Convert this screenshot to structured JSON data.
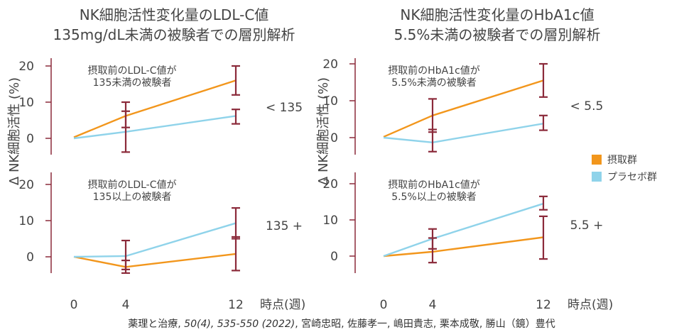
{
  "charts": [
    {
      "title_lines": [
        "NK細胞活性変化量のLDL-C値",
        "135mg/dL未満の被験者での層別解析"
      ],
      "panels": [
        {
          "annotation_lines": [
            "摂取前のLDL-C値が",
            "135未満の被験者"
          ],
          "segment_label": "< 135",
          "series": [
            {
              "key": "intake",
              "points": [
                [
                  0,
                  0.3
                ],
                [
                  4,
                  6.2
                ],
                [
                  12,
                  16.0
                ]
              ],
              "err": [
                null,
                [
                  3.0,
                  10.0
                ],
                [
                  12.0,
                  20.0
                ]
              ]
            },
            {
              "key": "placebo",
              "points": [
                [
                  0,
                  0.0
                ],
                [
                  4,
                  1.8
                ],
                [
                  12,
                  6.2
                ]
              ],
              "err": [
                null,
                [
                  -3.8,
                  7.5
                ],
                [
                  4.0,
                  8.0
                ]
              ]
            }
          ]
        },
        {
          "annotation_lines": [
            "摂取前のLDL-C値が",
            "135以上の被験者"
          ],
          "segment_label": "135 +",
          "series": [
            {
              "key": "intake",
              "points": [
                [
                  0,
                  0.0
                ],
                [
                  4,
                  -2.8
                ],
                [
                  12,
                  0.8
                ]
              ],
              "err": [
                null,
                [
                  -4.5,
                  -1.0
                ],
                [
                  -3.8,
                  5.5
                ]
              ]
            },
            {
              "key": "placebo",
              "points": [
                [
                  0,
                  0.0
                ],
                [
                  4,
                  0.2
                ],
                [
                  12,
                  9.3
                ]
              ],
              "err": [
                null,
                [
                  -3.5,
                  4.5
                ],
                [
                  5.0,
                  13.5
                ]
              ]
            }
          ]
        }
      ],
      "xaxis": {
        "ticks": [
          "0",
          "4",
          "12"
        ],
        "label": "時点(週)"
      }
    },
    {
      "title_lines": [
        "NK細胞活性変化量のHbA1c値",
        "5.5%未満の被験者での層別解析"
      ],
      "panels": [
        {
          "annotation_lines": [
            "摂取前のHbA1c値が",
            "5.5%未満の被験者"
          ],
          "segment_label": "< 5.5",
          "series": [
            {
              "key": "intake",
              "points": [
                [
                  0,
                  0.2
                ],
                [
                  4,
                  6.0
                ],
                [
                  12,
                  15.5
                ]
              ],
              "err": [
                null,
                [
                  1.5,
                  10.5
                ],
                [
                  11.0,
                  20.0
                ]
              ]
            },
            {
              "key": "placebo",
              "points": [
                [
                  0,
                  0.0
                ],
                [
                  4,
                  -1.3
                ],
                [
                  12,
                  3.8
                ]
              ],
              "err": [
                null,
                [
                  -3.8,
                  2.2
                ],
                [
                  2.0,
                  6.0
                ]
              ]
            }
          ]
        },
        {
          "annotation_lines": [
            "摂取前のHbA1c値が",
            "5.5%以上の被験者"
          ],
          "segment_label": "5.5 +",
          "series": [
            {
              "key": "intake",
              "points": [
                [
                  0,
                  0.0
                ],
                [
                  4,
                  1.2
                ],
                [
                  12,
                  5.2
                ]
              ],
              "err": [
                null,
                [
                  -1.8,
                  5.0
                ],
                [
                  -0.8,
                  11.0
                ]
              ]
            },
            {
              "key": "placebo",
              "points": [
                [
                  0,
                  0.0
                ],
                [
                  4,
                  4.8
                ],
                [
                  12,
                  14.5
                ]
              ],
              "err": [
                null,
                [
                  2.0,
                  7.5
                ],
                [
                  12.8,
                  16.5
                ]
              ]
            }
          ]
        }
      ],
      "xaxis": {
        "ticks": [
          "0",
          "4",
          "12"
        ],
        "label": "時点(週)"
      }
    }
  ],
  "yaxis": {
    "label": "Δ NK細胞活性 (%)",
    "ticks": [
      "0",
      "10",
      "20"
    ],
    "ylim": [
      -5,
      22
    ]
  },
  "legend": {
    "items": [
      {
        "key": "intake",
        "label": "摂取群",
        "color": "#f2961c"
      },
      {
        "key": "placebo",
        "label": "プラセボ群",
        "color": "#8fd3ea"
      }
    ],
    "placement": "right"
  },
  "citation": {
    "before": "薬理と治療, ",
    "italic": "50(4), 535-550 (2022)",
    "after": ", 宮崎忠昭, 佐藤孝一, 嶋田貴志, 栗本成敬, 勝山（鏡）豊代"
  },
  "colors": {
    "axis": "#8b2a3a",
    "error_bar": "#8b2a3a"
  },
  "chart_data": [
    {
      "type": "line",
      "title": "NK細胞活性変化量のLDL-C値 135mg/dL未満の被験者での層別解析",
      "xlabel": "時点(週)",
      "ylabel": "Δ NK細胞活性 (%)",
      "x": [
        0,
        4,
        12
      ],
      "ylim": [
        -5,
        22
      ],
      "subplots": [
        {
          "label": "< 135",
          "series": [
            {
              "name": "摂取群",
              "values": [
                0.3,
                6.2,
                16.0
              ]
            },
            {
              "name": "プラセボ群",
              "values": [
                0.0,
                1.8,
                6.2
              ]
            }
          ]
        },
        {
          "label": "135 +",
          "series": [
            {
              "name": "摂取群",
              "values": [
                0.0,
                -2.8,
                0.8
              ]
            },
            {
              "name": "プラセボ群",
              "values": [
                0.0,
                0.2,
                9.3
              ]
            }
          ]
        }
      ],
      "grid": false,
      "legend": "right"
    },
    {
      "type": "line",
      "title": "NK細胞活性変化量のHbA1c値 5.5%未満の被験者での層別解析",
      "xlabel": "時点(週)",
      "ylabel": "Δ NK細胞活性 (%)",
      "x": [
        0,
        4,
        12
      ],
      "ylim": [
        -5,
        22
      ],
      "subplots": [
        {
          "label": "< 5.5",
          "series": [
            {
              "name": "摂取群",
              "values": [
                0.2,
                6.0,
                15.5
              ]
            },
            {
              "name": "プラセボ群",
              "values": [
                0.0,
                -1.3,
                3.8
              ]
            }
          ]
        },
        {
          "label": "5.5 +",
          "series": [
            {
              "name": "摂取群",
              "values": [
                0.0,
                1.2,
                5.2
              ]
            },
            {
              "name": "プラセボ群",
              "values": [
                0.0,
                4.8,
                14.5
              ]
            }
          ]
        }
      ],
      "grid": false,
      "legend": "right"
    }
  ]
}
